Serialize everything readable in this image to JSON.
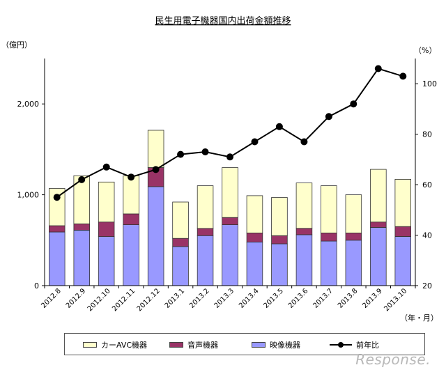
{
  "chart_data": {
    "type": "bar",
    "stacked": true,
    "title": "民生用電子機器国内出荷金額推移",
    "ylabel_left": "（億円）",
    "ylabel_right": "（%）",
    "xlabel": "（年・月）",
    "categories": [
      "2012.8",
      "2012.9",
      "2012.10",
      "2012.11",
      "2012.12",
      "2013.1",
      "2013.2",
      "2013.3",
      "2013.4",
      "2013.5",
      "2013.6",
      "2013.7",
      "2013.8",
      "2013.9",
      "2013.10"
    ],
    "series": [
      {
        "name": "映像機器",
        "color": "#9999ff",
        "values": [
          590,
          610,
          540,
          670,
          1090,
          430,
          550,
          670,
          480,
          460,
          560,
          490,
          500,
          640,
          540
        ]
      },
      {
        "name": "音声機器",
        "color": "#993366",
        "values": [
          70,
          70,
          160,
          120,
          210,
          90,
          80,
          80,
          100,
          90,
          70,
          90,
          80,
          60,
          110
        ]
      },
      {
        "name": "カーAVC機器",
        "color": "#ffffcc",
        "values": [
          410,
          530,
          440,
          420,
          410,
          400,
          470,
          550,
          410,
          420,
          500,
          520,
          420,
          580,
          520
        ]
      }
    ],
    "line": {
      "name": "前年比",
      "color": "#000000",
      "values": [
        55,
        62,
        67,
        63,
        66,
        72,
        73,
        71,
        77,
        83,
        77,
        87,
        92,
        106,
        103
      ]
    },
    "ylim_left": [
      0,
      2500
    ],
    "yticks_left": [
      0,
      1000,
      2000
    ],
    "ytick_labels_left": [
      "0",
      "1,000",
      "2,000"
    ],
    "ylim_right": [
      20,
      110
    ],
    "yticks_right": [
      20,
      40,
      60,
      80,
      100
    ],
    "ytick_labels_right": [
      "20",
      "40",
      "60",
      "80",
      "100"
    ],
    "legend_order": [
      "カーAVC機器",
      "音声機器",
      "映像機器",
      "前年比"
    ],
    "legend_position": "bottom",
    "grid": false
  },
  "watermark": "Response."
}
